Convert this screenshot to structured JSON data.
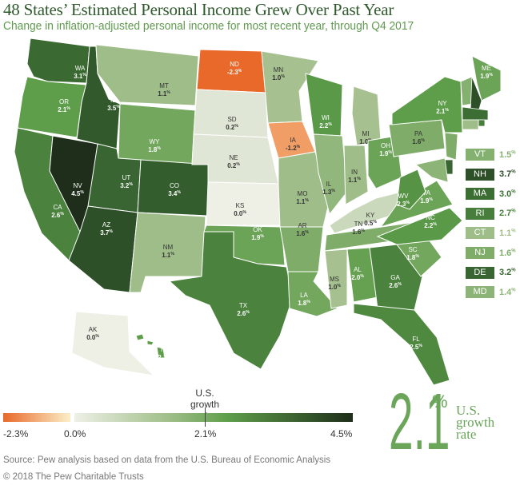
{
  "title": "48 States’ Estimated Personal Income Grew Over Past Year",
  "subtitle": "Change in inflation-adjusted personal income for most recent year, through Q4 2017",
  "colors": {
    "negative_max": "#e8692a",
    "negative_min": "#fbefc8",
    "zero": "#eef0e6",
    "us_rate": "#5e9e4a",
    "max": "#1e2e1a",
    "accent": "#6aa55a"
  },
  "states": [
    {
      "abbr": "WA",
      "value": 3.1
    },
    {
      "abbr": "OR",
      "value": 2.1
    },
    {
      "abbr": "CA",
      "value": 2.6
    },
    {
      "abbr": "NV",
      "value": 4.5
    },
    {
      "abbr": "ID",
      "value": 3.5
    },
    {
      "abbr": "MT",
      "value": 1.1
    },
    {
      "abbr": "WY",
      "value": 1.8
    },
    {
      "abbr": "UT",
      "value": 3.2
    },
    {
      "abbr": "AZ",
      "value": 3.7
    },
    {
      "abbr": "CO",
      "value": 3.4
    },
    {
      "abbr": "NM",
      "value": 1.1
    },
    {
      "abbr": "ND",
      "value": -2.3
    },
    {
      "abbr": "SD",
      "value": 0.2
    },
    {
      "abbr": "NE",
      "value": 0.2
    },
    {
      "abbr": "KS",
      "value": 0.0
    },
    {
      "abbr": "OK",
      "value": 1.9
    },
    {
      "abbr": "TX",
      "value": 2.6
    },
    {
      "abbr": "MN",
      "value": 1.0
    },
    {
      "abbr": "IA",
      "value": -1.2
    },
    {
      "abbr": "MO",
      "value": 1.1
    },
    {
      "abbr": "AR",
      "value": 1.6
    },
    {
      "abbr": "LA",
      "value": 1.8
    },
    {
      "abbr": "WI",
      "value": 2.2
    },
    {
      "abbr": "IL",
      "value": 1.3
    },
    {
      "abbr": "MI",
      "value": 1.0
    },
    {
      "abbr": "IN",
      "value": 1.1
    },
    {
      "abbr": "OH",
      "value": 1.9
    },
    {
      "abbr": "KY",
      "value": 0.5
    },
    {
      "abbr": "TN",
      "value": 1.6
    },
    {
      "abbr": "MS",
      "value": 1.0
    },
    {
      "abbr": "AL",
      "value": 2.0
    },
    {
      "abbr": "GA",
      "value": 2.6
    },
    {
      "abbr": "FL",
      "value": 2.5
    },
    {
      "abbr": "SC",
      "value": 1.8
    },
    {
      "abbr": "NC",
      "value": 2.2
    },
    {
      "abbr": "VA",
      "value": 1.9
    },
    {
      "abbr": "WV",
      "value": 2.3
    },
    {
      "abbr": "PA",
      "value": 1.6
    },
    {
      "abbr": "NY",
      "value": 2.1
    },
    {
      "abbr": "ME",
      "value": 1.9
    },
    {
      "abbr": "AK",
      "value": 0.0
    },
    {
      "abbr": "HI",
      "value": 2.1
    }
  ],
  "small_states": [
    {
      "abbr": "VT",
      "value": 1.5
    },
    {
      "abbr": "NH",
      "value": 3.7
    },
    {
      "abbr": "MA",
      "value": 3.0
    },
    {
      "abbr": "RI",
      "value": 2.7
    },
    {
      "abbr": "CT",
      "value": 1.1
    },
    {
      "abbr": "NJ",
      "value": 1.6
    },
    {
      "abbr": "DE",
      "value": 3.2
    },
    {
      "abbr": "MD",
      "value": 1.4
    }
  ],
  "legend": {
    "marker_label": "U.S. growth rate",
    "min_label": "-2.3%",
    "zero_label": "0.0%",
    "mid_label": "2.1%",
    "max_label": "4.5%",
    "min": -2.3,
    "max": 4.5,
    "us_rate": 2.1
  },
  "callout": {
    "value": "2.1",
    "unit": "%",
    "label": "U.S. growth rate"
  },
  "footer": {
    "source": "Source: Pew analysis based on data from the U.S. Bureau of Economic Analysis",
    "copyright": "© 2018 The Pew Charitable Trusts"
  }
}
